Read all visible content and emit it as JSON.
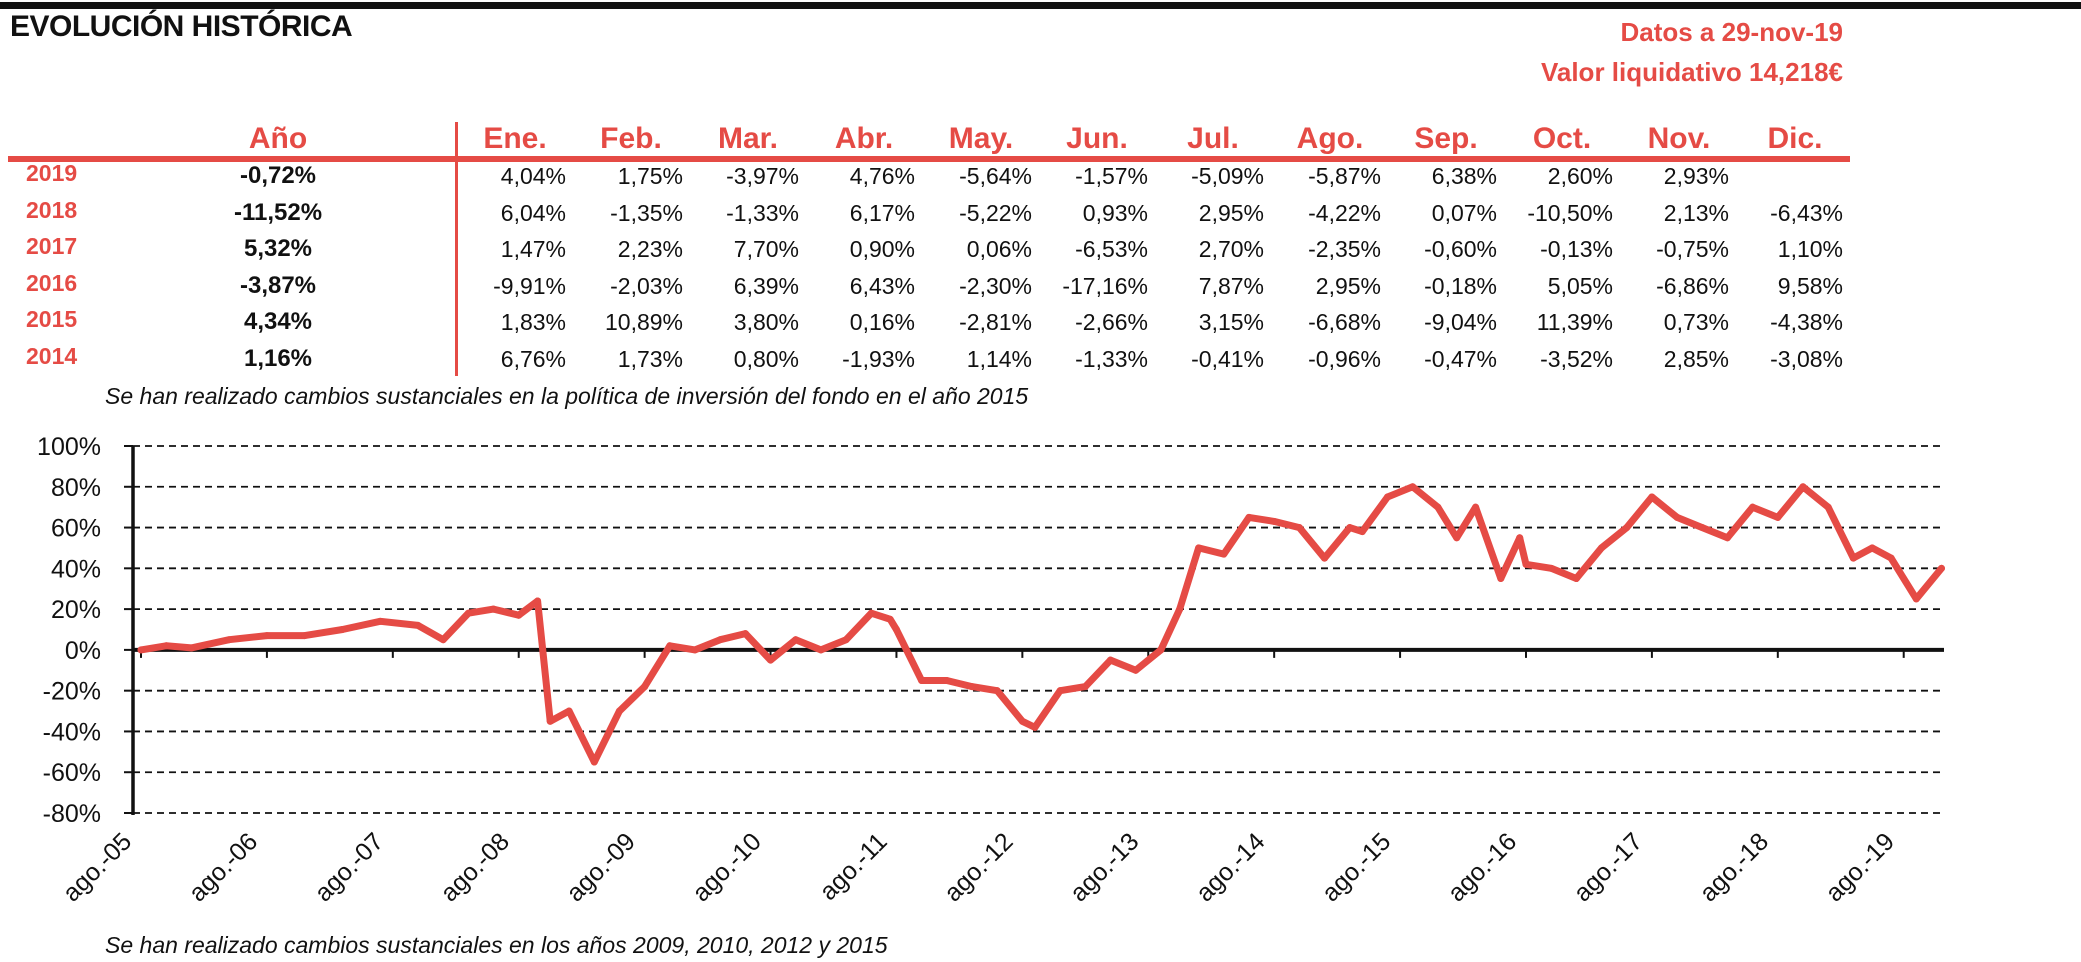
{
  "header": {
    "title": "EVOLUCIÓN HISTÓRICA",
    "date_line": "Datos a 29-nov-19",
    "nav_line": "Valor liquidativo 14,218€"
  },
  "table": {
    "year_header": "Año",
    "months": [
      "Ene.",
      "Feb.",
      "Mar.",
      "Abr.",
      "May.",
      "Jun.",
      "Jul.",
      "Ago.",
      "Sep.",
      "Oct.",
      "Nov.",
      "Dic."
    ],
    "rows": [
      {
        "year": "2019",
        "annual": "-0,72%",
        "values": [
          "4,04%",
          "1,75%",
          "-3,97%",
          "4,76%",
          "-5,64%",
          "-1,57%",
          "-5,09%",
          "-5,87%",
          "6,38%",
          "2,60%",
          "2,93%",
          ""
        ]
      },
      {
        "year": "2018",
        "annual": "-11,52%",
        "values": [
          "6,04%",
          "-1,35%",
          "-1,33%",
          "6,17%",
          "-5,22%",
          "0,93%",
          "2,95%",
          "-4,22%",
          "0,07%",
          "-10,50%",
          "2,13%",
          "-6,43%"
        ]
      },
      {
        "year": "2017",
        "annual": "5,32%",
        "values": [
          "1,47%",
          "2,23%",
          "7,70%",
          "0,90%",
          "0,06%",
          "-6,53%",
          "2,70%",
          "-2,35%",
          "-0,60%",
          "-0,13%",
          "-0,75%",
          "1,10%"
        ]
      },
      {
        "year": "2016",
        "annual": "-3,87%",
        "values": [
          "-9,91%",
          "-2,03%",
          "6,39%",
          "6,43%",
          "-2,30%",
          "-17,16%",
          "7,87%",
          "2,95%",
          "-0,18%",
          "5,05%",
          "-6,86%",
          "9,58%"
        ]
      },
      {
        "year": "2015",
        "annual": "4,34%",
        "values": [
          "1,83%",
          "10,89%",
          "3,80%",
          "0,16%",
          "-2,81%",
          "-2,66%",
          "3,15%",
          "-6,68%",
          "-9,04%",
          "11,39%",
          "0,73%",
          "-4,38%"
        ]
      },
      {
        "year": "2014",
        "annual": "1,16%",
        "values": [
          "6,76%",
          "1,73%",
          "0,80%",
          "-1,93%",
          "1,14%",
          "-1,33%",
          "-0,41%",
          "-0,96%",
          "-0,47%",
          "-3,52%",
          "2,85%",
          "-3,08%"
        ]
      }
    ]
  },
  "notes": {
    "table_note": "Se han realizado cambios sustanciales en la política de inversión del fondo en el año 2015",
    "chart_note": "Se han realizado cambios sustanciales en los años 2009, 2010, 2012 y 2015"
  },
  "chart_data": {
    "type": "line",
    "title": "",
    "xlabel": "",
    "ylabel": "",
    "ylim": [
      -80,
      100
    ],
    "yticks": [
      100,
      80,
      60,
      40,
      20,
      0,
      -20,
      -40,
      -60,
      -80
    ],
    "ytick_labels": [
      "100%",
      "80%",
      "60%",
      "40%",
      "20%",
      "0%",
      "-20%",
      "-40%",
      "-60%",
      "-80%"
    ],
    "xtick_labels": [
      "ago.-05",
      "ago.-06",
      "ago.-07",
      "ago.-08",
      "ago.-09",
      "ago.-10",
      "ago.-11",
      "ago.-12",
      "ago.-13",
      "ago.-14",
      "ago.-15",
      "ago.-16",
      "ago.-17",
      "ago.-18",
      "ago.-19"
    ],
    "grid": "horizontal dashed",
    "line_color": "#e54b45",
    "series": [
      {
        "x": [
          2005.6,
          2005.8,
          2006.0,
          2006.3,
          2006.6,
          2006.9,
          2007.2,
          2007.5,
          2007.8,
          2008.0,
          2008.2,
          2008.4,
          2008.6,
          2008.75,
          2008.85,
          2009.0,
          2009.2,
          2009.4,
          2009.6,
          2009.8,
          2010.0,
          2010.2,
          2010.4,
          2010.6,
          2010.8,
          2011.0,
          2011.2,
          2011.4,
          2011.55,
          2011.6,
          2011.8,
          2012.0,
          2012.2,
          2012.4,
          2012.6,
          2012.7,
          2012.9,
          2013.1,
          2013.3,
          2013.5,
          2013.7,
          2013.85,
          2014.0,
          2014.2,
          2014.4,
          2014.6,
          2014.8,
          2015.0,
          2015.2,
          2015.3,
          2015.5,
          2015.7,
          2015.9,
          2016.05,
          2016.2,
          2016.4,
          2016.55,
          2016.6,
          2016.8,
          2017.0,
          2017.2,
          2017.4,
          2017.6,
          2017.8,
          2018.0,
          2018.2,
          2018.4,
          2018.6,
          2018.8,
          2019.0,
          2019.2,
          2019.35,
          2019.5,
          2019.7,
          2019.9
        ],
        "y": [
          0,
          2,
          1,
          5,
          7,
          7,
          10,
          14,
          12,
          5,
          18,
          20,
          17,
          24,
          -35,
          -30,
          -55,
          -30,
          -18,
          2,
          0,
          5,
          8,
          -5,
          5,
          0,
          5,
          18,
          15,
          10,
          -15,
          -15,
          -18,
          -20,
          -35,
          -38,
          -20,
          -18,
          -5,
          -10,
          0,
          20,
          50,
          47,
          65,
          63,
          60,
          45,
          60,
          58,
          75,
          80,
          70,
          55,
          70,
          35,
          55,
          42,
          40,
          35,
          50,
          60,
          75,
          65,
          60,
          55,
          70,
          65,
          80,
          70,
          45,
          50,
          45,
          25,
          40
        ]
      }
    ]
  }
}
